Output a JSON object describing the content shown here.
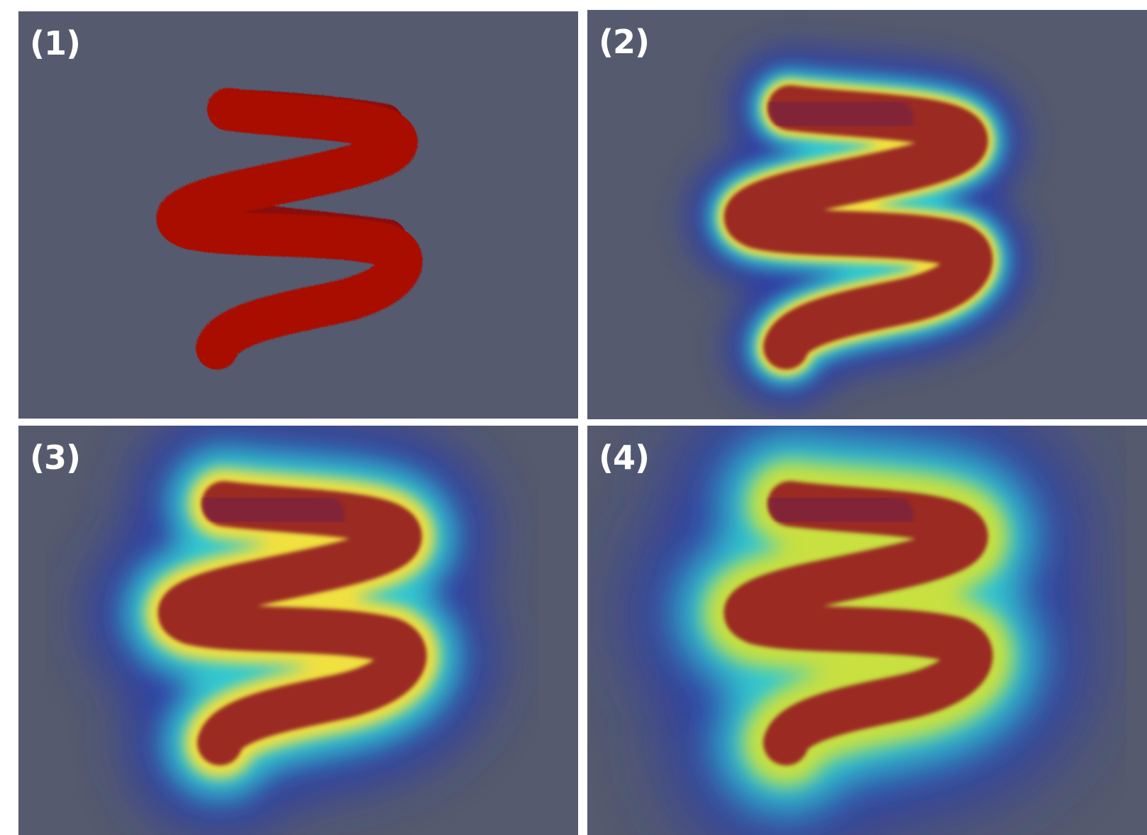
{
  "panels": [
    {
      "label": "(1)",
      "stage": "raw"
    },
    {
      "label": "(2)",
      "stage": "blur-1"
    },
    {
      "label": "(3)",
      "stage": "blur-2"
    },
    {
      "label": "(4)",
      "stage": "blur-3"
    }
  ],
  "colors": {
    "background": "#555a6e",
    "helix_raw": "#a80e04",
    "helix_blurred": "#9a2a22",
    "halo_inner": "#f0e040",
    "halo_mid": "#30c8d0",
    "halo_outer": "#2838b0",
    "separator": "#ffffff"
  }
}
